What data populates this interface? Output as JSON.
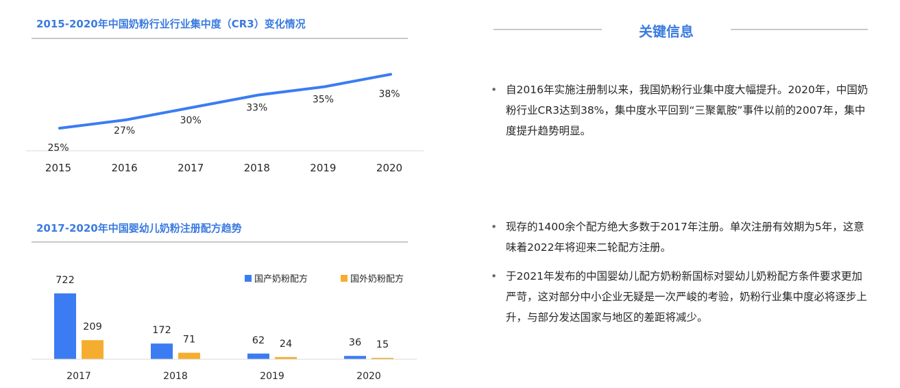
{
  "chart_data": [
    {
      "type": "line",
      "title": "2015-2020年中国奶粉行业行业集中度（CR3）变化情况",
      "x": [
        "2015",
        "2016",
        "2017",
        "2018",
        "2019",
        "2020"
      ],
      "values": [
        25,
        27,
        30,
        33,
        35,
        38
      ],
      "value_labels": [
        "25%",
        "27%",
        "30%",
        "33%",
        "35%",
        "38%"
      ],
      "color": "#3b7cf3",
      "grid": false
    },
    {
      "type": "bar",
      "title": "2017-2020年中国婴幼儿奶粉注册配方趋势",
      "categories": [
        "2017",
        "2018",
        "2019",
        "2020"
      ],
      "series": [
        {
          "name": "国产奶粉配方",
          "values": [
            722,
            172,
            62,
            36
          ],
          "color": "#3b7cf3"
        },
        {
          "name": "国外奶粉配方",
          "values": [
            209,
            71,
            24,
            15
          ],
          "color": "#f5ad2f"
        }
      ],
      "legend": "top-right",
      "grid": false
    }
  ],
  "key_info": {
    "title": "关键信息",
    "points": [
      "自2016年实施注册制以来，我国奶粉行业集中度大幅提升。2020年，中国奶粉行业CR3达到38%，集中度水平回到“三聚氰胺”事件以前的2007年，集中度提升趋势明显。",
      "现存的1400余个配方绝大多数于2017年注册。单次注册有效期为5年，这意味着2022年将迎来二轮配方注册。",
      "于2021年发布的中国婴幼儿配方奶粉新国标对婴幼儿奶粉配方条件要求更加严苛，这对部分中小企业无疑是一次严峻的考验，奶粉行业集中度必将逐步上升，与部分发达国家与地区的差距将减少。"
    ]
  }
}
